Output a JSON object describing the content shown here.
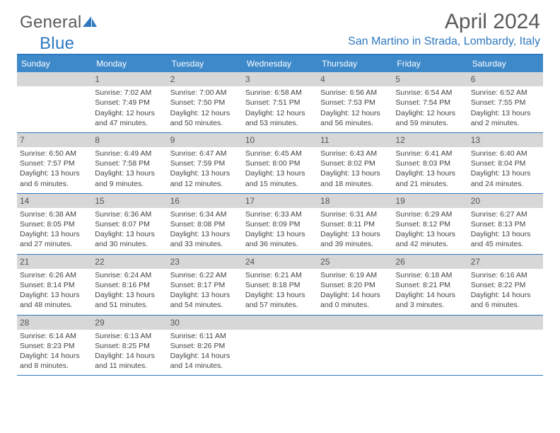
{
  "logo": {
    "part1": "General",
    "part2": "Blue"
  },
  "header": {
    "month_title": "April 2024",
    "location": "San Martino in Strada, Lombardy, Italy"
  },
  "colors": {
    "brand": "#2e78bf",
    "header_bg": "#3e89ca",
    "day_header_bg": "#d7d7d7",
    "text": "#444444",
    "logo_gray": "#5a5a5a"
  },
  "dow": [
    "Sunday",
    "Monday",
    "Tuesday",
    "Wednesday",
    "Thursday",
    "Friday",
    "Saturday"
  ],
  "weeks": [
    [
      {
        "n": "",
        "sunrise": "",
        "sunset": "",
        "daylight": ""
      },
      {
        "n": "1",
        "sunrise": "Sunrise: 7:02 AM",
        "sunset": "Sunset: 7:49 PM",
        "daylight": "Daylight: 12 hours and 47 minutes."
      },
      {
        "n": "2",
        "sunrise": "Sunrise: 7:00 AM",
        "sunset": "Sunset: 7:50 PM",
        "daylight": "Daylight: 12 hours and 50 minutes."
      },
      {
        "n": "3",
        "sunrise": "Sunrise: 6:58 AM",
        "sunset": "Sunset: 7:51 PM",
        "daylight": "Daylight: 12 hours and 53 minutes."
      },
      {
        "n": "4",
        "sunrise": "Sunrise: 6:56 AM",
        "sunset": "Sunset: 7:53 PM",
        "daylight": "Daylight: 12 hours and 56 minutes."
      },
      {
        "n": "5",
        "sunrise": "Sunrise: 6:54 AM",
        "sunset": "Sunset: 7:54 PM",
        "daylight": "Daylight: 12 hours and 59 minutes."
      },
      {
        "n": "6",
        "sunrise": "Sunrise: 6:52 AM",
        "sunset": "Sunset: 7:55 PM",
        "daylight": "Daylight: 13 hours and 2 minutes."
      }
    ],
    [
      {
        "n": "7",
        "sunrise": "Sunrise: 6:50 AM",
        "sunset": "Sunset: 7:57 PM",
        "daylight": "Daylight: 13 hours and 6 minutes."
      },
      {
        "n": "8",
        "sunrise": "Sunrise: 6:49 AM",
        "sunset": "Sunset: 7:58 PM",
        "daylight": "Daylight: 13 hours and 9 minutes."
      },
      {
        "n": "9",
        "sunrise": "Sunrise: 6:47 AM",
        "sunset": "Sunset: 7:59 PM",
        "daylight": "Daylight: 13 hours and 12 minutes."
      },
      {
        "n": "10",
        "sunrise": "Sunrise: 6:45 AM",
        "sunset": "Sunset: 8:00 PM",
        "daylight": "Daylight: 13 hours and 15 minutes."
      },
      {
        "n": "11",
        "sunrise": "Sunrise: 6:43 AM",
        "sunset": "Sunset: 8:02 PM",
        "daylight": "Daylight: 13 hours and 18 minutes."
      },
      {
        "n": "12",
        "sunrise": "Sunrise: 6:41 AM",
        "sunset": "Sunset: 8:03 PM",
        "daylight": "Daylight: 13 hours and 21 minutes."
      },
      {
        "n": "13",
        "sunrise": "Sunrise: 6:40 AM",
        "sunset": "Sunset: 8:04 PM",
        "daylight": "Daylight: 13 hours and 24 minutes."
      }
    ],
    [
      {
        "n": "14",
        "sunrise": "Sunrise: 6:38 AM",
        "sunset": "Sunset: 8:05 PM",
        "daylight": "Daylight: 13 hours and 27 minutes."
      },
      {
        "n": "15",
        "sunrise": "Sunrise: 6:36 AM",
        "sunset": "Sunset: 8:07 PM",
        "daylight": "Daylight: 13 hours and 30 minutes."
      },
      {
        "n": "16",
        "sunrise": "Sunrise: 6:34 AM",
        "sunset": "Sunset: 8:08 PM",
        "daylight": "Daylight: 13 hours and 33 minutes."
      },
      {
        "n": "17",
        "sunrise": "Sunrise: 6:33 AM",
        "sunset": "Sunset: 8:09 PM",
        "daylight": "Daylight: 13 hours and 36 minutes."
      },
      {
        "n": "18",
        "sunrise": "Sunrise: 6:31 AM",
        "sunset": "Sunset: 8:11 PM",
        "daylight": "Daylight: 13 hours and 39 minutes."
      },
      {
        "n": "19",
        "sunrise": "Sunrise: 6:29 AM",
        "sunset": "Sunset: 8:12 PM",
        "daylight": "Daylight: 13 hours and 42 minutes."
      },
      {
        "n": "20",
        "sunrise": "Sunrise: 6:27 AM",
        "sunset": "Sunset: 8:13 PM",
        "daylight": "Daylight: 13 hours and 45 minutes."
      }
    ],
    [
      {
        "n": "21",
        "sunrise": "Sunrise: 6:26 AM",
        "sunset": "Sunset: 8:14 PM",
        "daylight": "Daylight: 13 hours and 48 minutes."
      },
      {
        "n": "22",
        "sunrise": "Sunrise: 6:24 AM",
        "sunset": "Sunset: 8:16 PM",
        "daylight": "Daylight: 13 hours and 51 minutes."
      },
      {
        "n": "23",
        "sunrise": "Sunrise: 6:22 AM",
        "sunset": "Sunset: 8:17 PM",
        "daylight": "Daylight: 13 hours and 54 minutes."
      },
      {
        "n": "24",
        "sunrise": "Sunrise: 6:21 AM",
        "sunset": "Sunset: 8:18 PM",
        "daylight": "Daylight: 13 hours and 57 minutes."
      },
      {
        "n": "25",
        "sunrise": "Sunrise: 6:19 AM",
        "sunset": "Sunset: 8:20 PM",
        "daylight": "Daylight: 14 hours and 0 minutes."
      },
      {
        "n": "26",
        "sunrise": "Sunrise: 6:18 AM",
        "sunset": "Sunset: 8:21 PM",
        "daylight": "Daylight: 14 hours and 3 minutes."
      },
      {
        "n": "27",
        "sunrise": "Sunrise: 6:16 AM",
        "sunset": "Sunset: 8:22 PM",
        "daylight": "Daylight: 14 hours and 6 minutes."
      }
    ],
    [
      {
        "n": "28",
        "sunrise": "Sunrise: 6:14 AM",
        "sunset": "Sunset: 8:23 PM",
        "daylight": "Daylight: 14 hours and 8 minutes."
      },
      {
        "n": "29",
        "sunrise": "Sunrise: 6:13 AM",
        "sunset": "Sunset: 8:25 PM",
        "daylight": "Daylight: 14 hours and 11 minutes."
      },
      {
        "n": "30",
        "sunrise": "Sunrise: 6:11 AM",
        "sunset": "Sunset: 8:26 PM",
        "daylight": "Daylight: 14 hours and 14 minutes."
      },
      {
        "n": "",
        "sunrise": "",
        "sunset": "",
        "daylight": ""
      },
      {
        "n": "",
        "sunrise": "",
        "sunset": "",
        "daylight": ""
      },
      {
        "n": "",
        "sunrise": "",
        "sunset": "",
        "daylight": ""
      },
      {
        "n": "",
        "sunrise": "",
        "sunset": "",
        "daylight": ""
      }
    ]
  ]
}
